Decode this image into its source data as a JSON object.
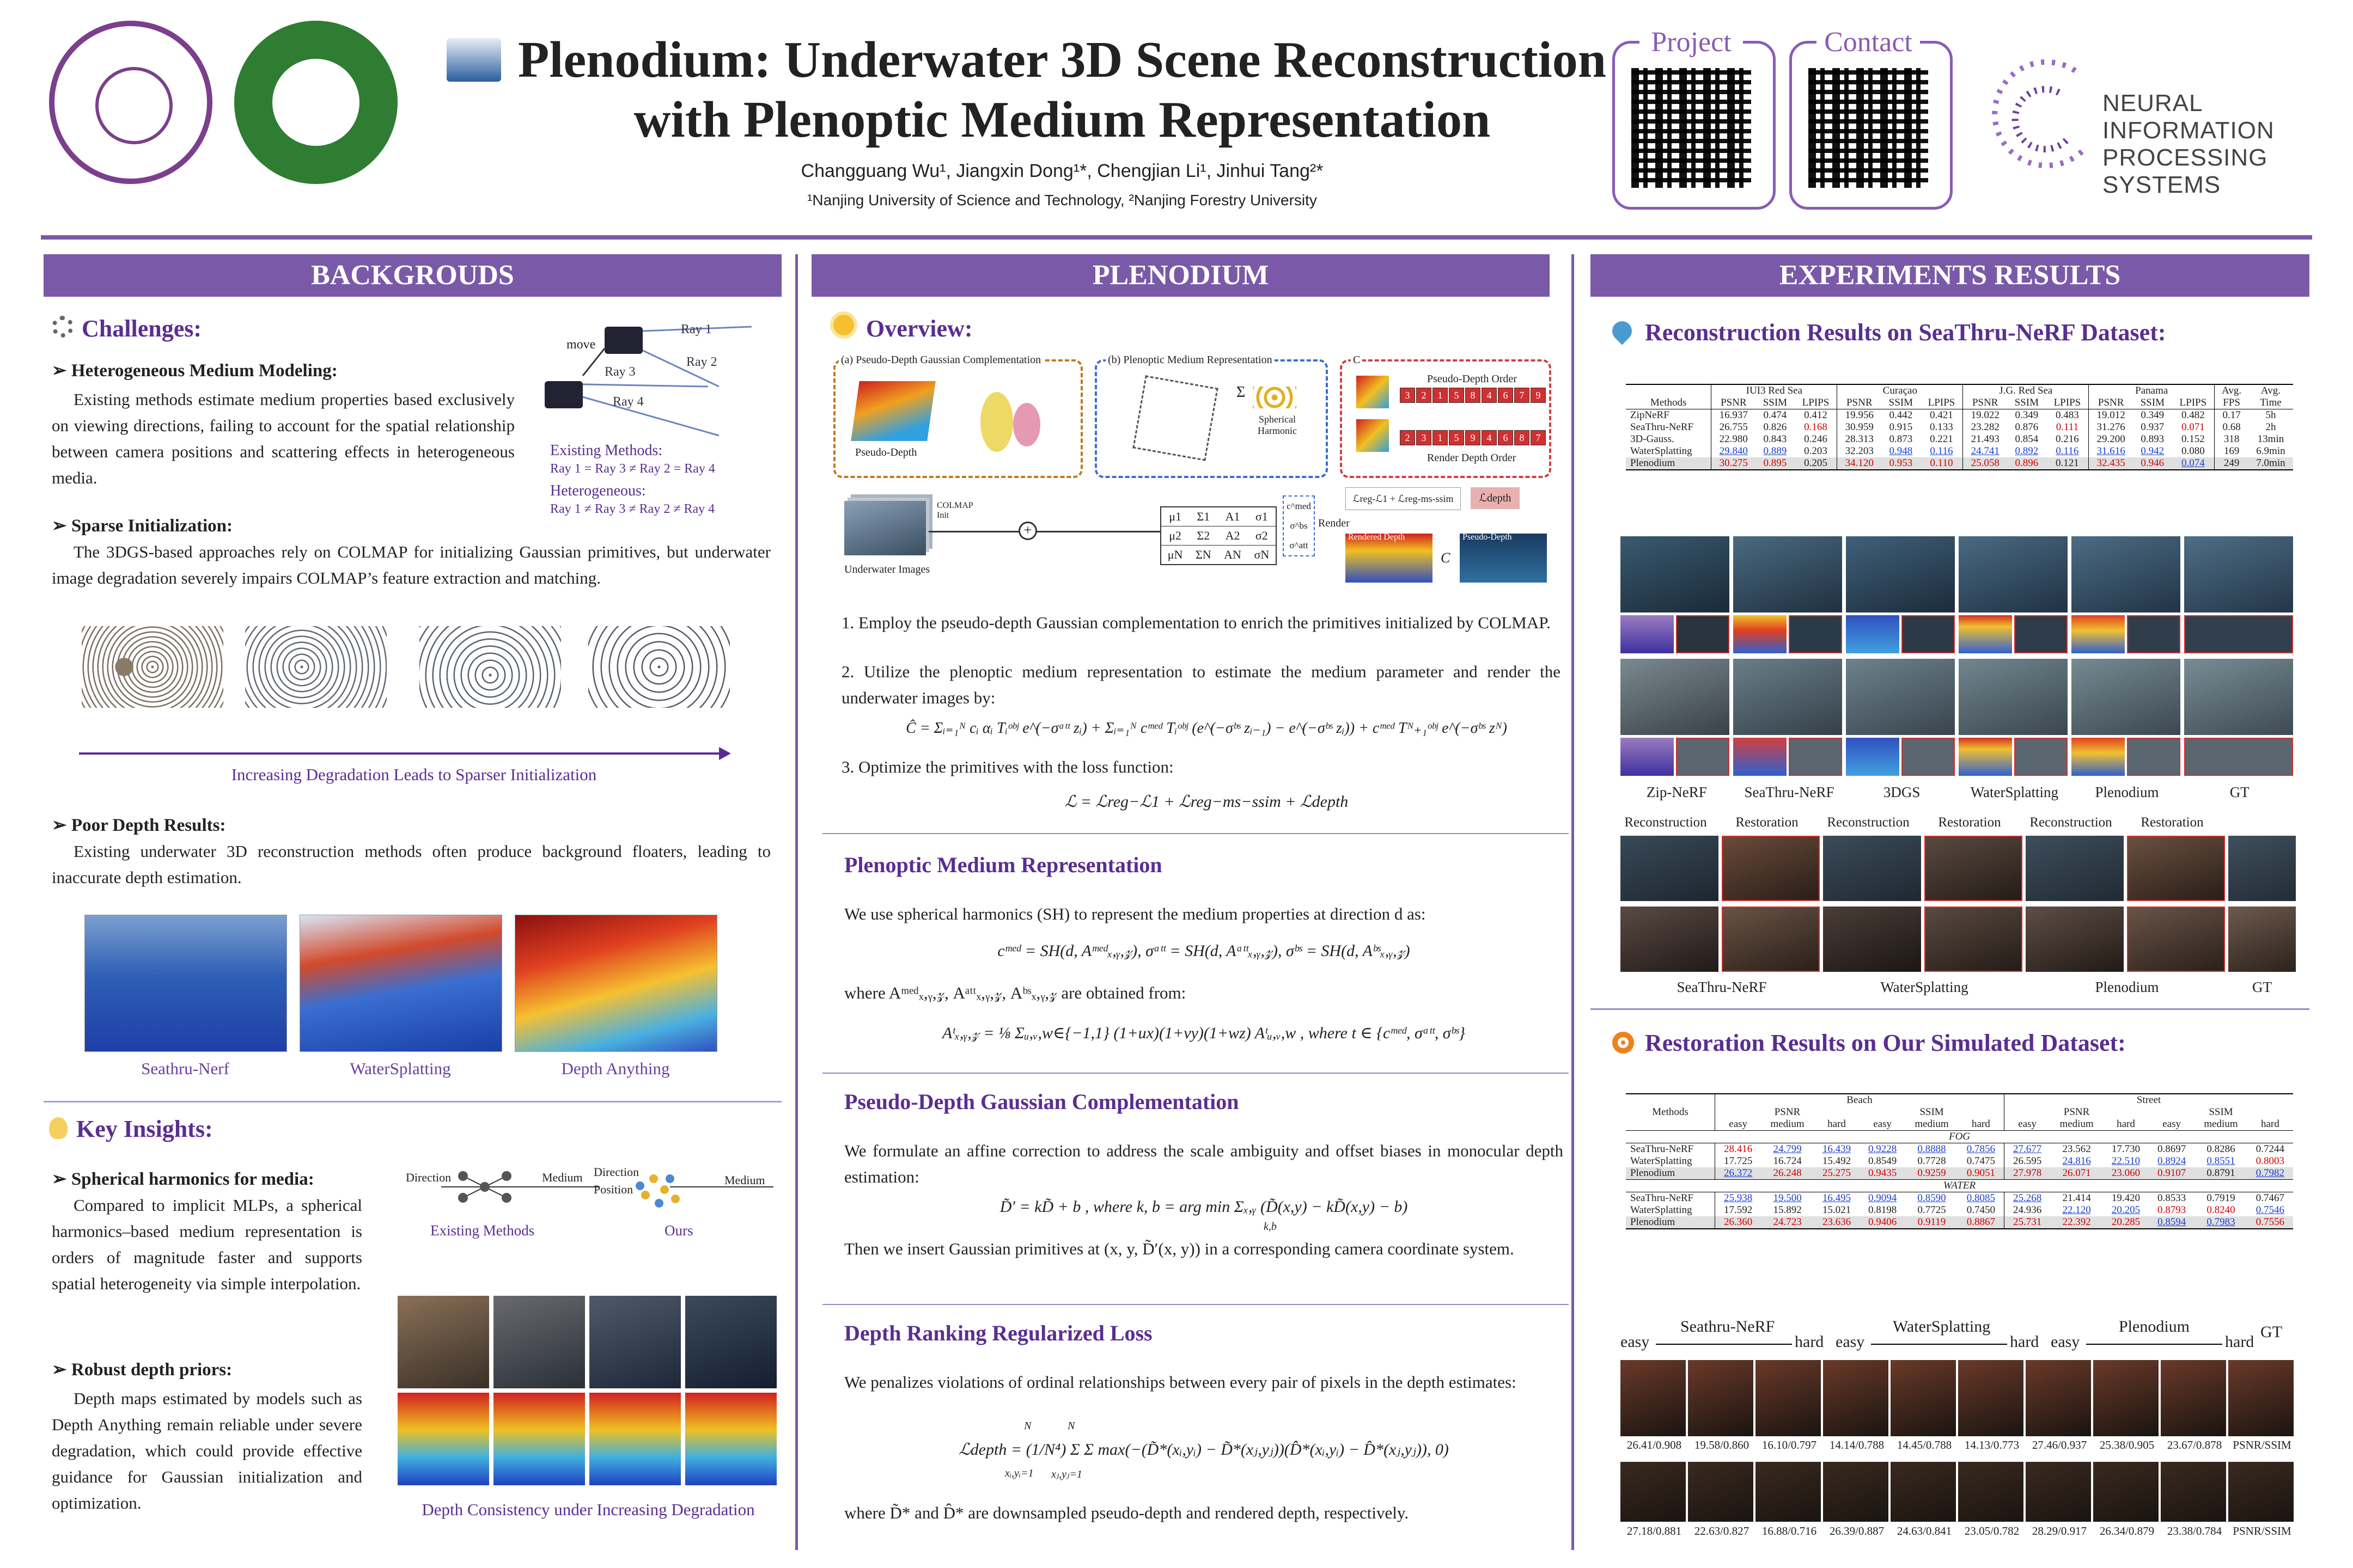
{
  "header": {
    "title_line1": "Plenodium: Underwater 3D Scene Reconstruction",
    "title_line2": "with Plenoptic Medium Representation",
    "authors": "Changguang Wu¹, Jiangxin Dong¹*, Chengjian Li¹, Jinhui Tang²*",
    "affiliations": "¹Nanjing University of Science and Technology, ²Nanjing Forestry University",
    "project_label": "Project",
    "contact_label": "Contact",
    "neurips_line1": "NEURAL INFORMATION",
    "neurips_line2": "PROCESSING SYSTEMS",
    "logo_colors": {
      "njust": "#7b3f8c",
      "njfu": "#2e7d32",
      "accent": "#7a5aa8"
    }
  },
  "columns": {
    "left": "BACKGROUDS",
    "middle": "PLENODIUM",
    "right": "EXPERIMENTS RESULTS"
  },
  "left": {
    "challenges": "Challenges:",
    "hetero_title": "Heterogeneous Medium Modeling:",
    "hetero_text": "Existing methods estimate medium properties based exclusively on viewing directions, failing to account for the spatial relationship between camera positions and scattering effects in heterogeneous media.",
    "diagram": {
      "move": "move",
      "ray1": "Ray 1",
      "ray2": "Ray 2",
      "ray3": "Ray 3",
      "ray4": "Ray 4",
      "existing": "Existing Methods:",
      "existing_eq": "Ray 1 = Ray 3 ≠ Ray 2 = Ray 4",
      "hetero": "Heterogeneous:",
      "hetero_eq": "Ray 1 ≠ Ray 3 ≠ Ray 2 ≠ Ray 4"
    },
    "sparse_title": "Sparse Initialization:",
    "sparse_text": "The 3DGS-based approaches rely on COLMAP for initializing Gaussian primitives, but underwater image degradation severely impairs COLMAP’s feature extraction and matching.",
    "sparse_caption": "Increasing Degradation Leads to Sparser Initialization",
    "poor_title": "Poor Depth Results:",
    "poor_text": "Existing underwater 3D reconstruction methods often produce background floaters, leading to inaccurate depth estimation.",
    "depth_labels": [
      "Seathru-Nerf",
      "WaterSplatting",
      "Depth Anything"
    ],
    "insights": "Key Insights:",
    "sh_title": "Spherical harmonics for media:",
    "sh_text": "Compared to implicit MLPs, a spherical harmonics–based medium representation is orders of magnitude faster and supports spatial heterogeneity via simple interpolation.",
    "sh_diag": {
      "direction": "Direction",
      "medium": "Medium",
      "direction2": "Direction",
      "position": "Position",
      "medium2": "Medium",
      "existing": "Existing Methods",
      "ours": "Ours"
    },
    "robust_title": "Robust depth priors:",
    "robust_text": "Depth maps estimated by models such as Depth Anything remain reliable under severe degradation, which could provide effective guidance for Gaussian initialization and optimization.",
    "depth_consistency": "Depth Consistency under Increasing Degradation"
  },
  "middle": {
    "overview": "Overview:",
    "diag": {
      "a": "(a) Pseudo-Depth Gaussian Complementation",
      "b": "(b) Plenoptic Medium Representation",
      "c": "C",
      "pseudo_depth": "Pseudo-Depth",
      "spherical": "Spherical Harmonic",
      "pdo": "Pseudo-Depth Order",
      "rdo": "Render Depth Order",
      "pdo_cells": [
        "3",
        "2",
        "1",
        "5",
        "8",
        "4",
        "6",
        "7",
        "9"
      ],
      "rdo_cells": [
        "2",
        "3",
        "1",
        "5",
        "9",
        "4",
        "6",
        "8",
        "7"
      ],
      "colmap": "COLMAP Init",
      "uw": "Underwater Images",
      "render": "Render",
      "loss": "ℒreg-ℒ1 + ℒreg-ms-ssim",
      "ldepth": "ℒdepth",
      "rendered_depth": "Rendered Depth",
      "pseudo_depth2": "Pseudo-Depth",
      "sigma": "Σ",
      "mu_rows": [
        [
          "μ1",
          "Σ1",
          "A1",
          "σ1"
        ],
        [
          "μ2",
          "Σ2",
          "A2",
          "σ2"
        ],
        [
          "μN",
          "ΣN",
          "AN",
          "σN"
        ]
      ],
      "vec": [
        "c^med",
        "σ^bs",
        "σ^att"
      ]
    },
    "step1": "1. Employ the pseudo-depth Gaussian complementation to enrich the primitives initialized by COLMAP.",
    "step2": "2. Utilize the plenoptic medium representation to estimate the medium parameter and render the underwater images by:",
    "eq_render": "Ĉ = Σᵢ₌₁ᴺ cᵢ αᵢ Tᵢᵒᵇʲ e^(−σᵃᵗᵗ zᵢ) + Σᵢ₌₁ᴺ cᵐᵉᵈ Tᵢᵒᵇʲ (e^(−σᵇˢ zᵢ₋₁) − e^(−σᵇˢ zᵢ)) + cᵐᵉᵈ Tᴺ₊₁ᵒᵇʲ e^(−σᵇˢ zᴺ)",
    "step3": "3. Optimize the primitives with the loss function:",
    "eq_loss": "ℒ = ℒreg−ℒ1 + ℒreg−ms−ssim + ℒdepth",
    "pmr_title": "Plenoptic Medium Representation",
    "pmr_text": "We use spherical harmonics (SH) to represent the medium properties at direction d as:",
    "pmr_eq1": "cᵐᵉᵈ = SH(d, Aᵐᵉᵈₓ,ᵧ,𝓏),  σᵃᵗᵗ = SH(d, Aᵃᵗᵗₓ,ᵧ,𝓏),  σᵇˢ = SH(d, Aᵇˢₓ,ᵧ,𝓏)",
    "pmr_where": "where Aᵐᵉᵈₓ,ᵧ,𝓏, Aᵃᵗᵗₓ,ᵧ,𝓏, Aᵇˢₓ,ᵧ,𝓏 are obtained from:",
    "pmr_eq2": "Aᵗₓ,ᵧ,𝓏 = ⅛ Σᵤ,ᵥ,w∈{−1,1} (1+ux)(1+vy)(1+wz) Aᵗᵤ,ᵥ,w , where t ∈ {cᵐᵉᵈ, σᵃᵗᵗ, σᵇˢ}",
    "pdgc_title": "Pseudo-Depth Gaussian Complementation",
    "pdgc_text": "We formulate an affine correction to address the scale ambiguity and offset biases in monocular depth estimation:",
    "pdgc_eq": "D̃′ = kD̃ + b , where k, b = arg min Σₓ,ᵧ (D̃(x,y) − kD̃(x,y) − b)",
    "pdgc_eq_sub": "k,b",
    "pdgc_text2": "Then we insert Gaussian primitives at (x, y, D̃′(x, y)) in a corresponding camera coordinate system.",
    "drrl_title": "Depth Ranking Regularized Loss",
    "drrl_text": "We penalizes violations of ordinal relationships between every pair of pixels in the depth estimates:",
    "drrl_eq": "ℒdepth = (1/N⁴) Σ Σ max(−(D̃*(xᵢ,yᵢ) − D̃*(xⱼ,yⱼ))(D̂*(xᵢ,yᵢ) − D̂*(xⱼ,yⱼ)), 0)",
    "drrl_eq_lims": [
      "N",
      "N",
      "xᵢ,yᵢ=1",
      "xⱼ,yⱼ=1"
    ],
    "drrl_where": "where D̃* and D̂* are downsampled pseudo-depth and rendered depth, respectively."
  },
  "right": {
    "recon_title": "Reconstruction Results on SeaThru-NeRF Dataset:",
    "t1": {
      "groups": [
        "IUI3 Red Sea",
        "Curaçao",
        "J.G. Red Sea",
        "Panama"
      ],
      "metric_headers": [
        "Methods",
        "PSNR",
        "SSIM",
        "LPIPS",
        "PSNR",
        "SSIM",
        "LPIPS",
        "PSNR",
        "SSIM",
        "LPIPS",
        "PSNR",
        "SSIM",
        "LPIPS",
        "FPS",
        "Time"
      ],
      "avg1": "Avg.",
      "avg2": "Avg.",
      "rows": [
        [
          "ZipNeRF",
          "16.937",
          "0.474",
          "0.412",
          "19.956",
          "0.442",
          "0.421",
          "19.022",
          "0.349",
          "0.483",
          "19.012",
          "0.349",
          "0.482",
          "0.17",
          "5h"
        ],
        [
          "SeaThru-NeRF",
          "26.755",
          "0.826",
          "0.168",
          "30.959",
          "0.915",
          "0.133",
          "23.282",
          "0.876",
          "0.111",
          "31.276",
          "0.937",
          "0.071",
          "0.68",
          "2h"
        ],
        [
          "3D-Gauss.",
          "22.980",
          "0.843",
          "0.246",
          "28.313",
          "0.873",
          "0.221",
          "21.493",
          "0.854",
          "0.216",
          "29.200",
          "0.893",
          "0.152",
          "318",
          "13min"
        ],
        [
          "WaterSplatting",
          "29.840",
          "0.889",
          "0.203",
          "32.203",
          "0.948",
          "0.116",
          "24.741",
          "0.892",
          "0.116",
          "31.616",
          "0.942",
          "0.080",
          "169",
          "6.9min"
        ],
        [
          "Plenodium",
          "30.275",
          "0.895",
          "0.205",
          "34.120",
          "0.953",
          "0.110",
          "25.058",
          "0.896",
          "0.121",
          "32.435",
          "0.946",
          "0.074",
          "249",
          "7.0min"
        ]
      ],
      "marks": {
        "red": [
          "1-3",
          "1-9",
          "1-12",
          "4-1",
          "4-2",
          "4-4",
          "4-5",
          "4-6",
          "4-7",
          "4-8",
          "4-10",
          "4-11"
        ],
        "blue": [
          "3-1",
          "3-2",
          "3-5",
          "3-6",
          "3-7",
          "3-8",
          "3-9",
          "3-10",
          "3-11",
          "4-12"
        ]
      }
    },
    "recon_labels": [
      "Zip-NeRF",
      "SeaThru-NeRF",
      "3DGS",
      "WaterSplatting",
      "Plenodium",
      "GT"
    ],
    "rr_labels": [
      "Reconstruction",
      "Restoration",
      "Reconstruction",
      "Restoration",
      "Reconstruction",
      "Restoration"
    ],
    "rr_bottom": [
      "SeaThru-NeRF",
      "WaterSplatting",
      "Plenodium",
      "GT"
    ],
    "resto_title": "Restoration Results on Our Simulated Dataset:",
    "t2": {
      "beach": "Beach",
      "street": "Street",
      "methods": "Methods",
      "psnr": "PSNR",
      "ssim": "SSIM",
      "levels": [
        "easy",
        "medium",
        "hard",
        "easy",
        "medium",
        "hard",
        "easy",
        "medium",
        "hard",
        "easy",
        "medium",
        "hard"
      ],
      "fog": "FOG",
      "water": "WATER",
      "fog_rows": [
        [
          "SeaThru-NeRF",
          "28.416",
          "24.799",
          "16.439",
          "0.9228",
          "0.8888",
          "0.7856",
          "27.677",
          "23.562",
          "17.730",
          "0.8697",
          "0.8286",
          "0.7244"
        ],
        [
          "WaterSplatting",
          "17.725",
          "16.724",
          "15.492",
          "0.8549",
          "0.7728",
          "0.7475",
          "26.595",
          "24.816",
          "22.510",
          "0.8924",
          "0.8551",
          "0.8003"
        ],
        [
          "Plenodium",
          "26.372",
          "26.248",
          "25.275",
          "0.9435",
          "0.9259",
          "0.9051",
          "27.978",
          "26.071",
          "23.060",
          "0.9107",
          "0.8791",
          "0.7982"
        ]
      ],
      "water_rows": [
        [
          "SeaThru-NeRF",
          "25.938",
          "19.500",
          "16.495",
          "0.9094",
          "0.8590",
          "0.8085",
          "25.268",
          "21.414",
          "19.420",
          "0.8533",
          "0.7919",
          "0.7467"
        ],
        [
          "WaterSplatting",
          "17.592",
          "15.892",
          "15.021",
          "0.8198",
          "0.7725",
          "0.7450",
          "24.936",
          "22.120",
          "20.205",
          "0.8793",
          "0.8240",
          "0.7546"
        ],
        [
          "Plenodium",
          "26.360",
          "24.723",
          "23.636",
          "0.9406",
          "0.9119",
          "0.8867",
          "25.731",
          "22.392",
          "20.285",
          "0.8594",
          "0.7983",
          "0.7556"
        ]
      ],
      "fog_marks": {
        "red": [
          "0-1",
          "2-2",
          "2-3",
          "2-4",
          "2-5",
          "2-6",
          "2-7",
          "2-8",
          "2-9",
          "2-10",
          "1-12"
        ],
        "blue": [
          "2-1",
          "0-2",
          "0-3",
          "0-4",
          "0-5",
          "0-6",
          "0-7",
          "1-8",
          "1-9",
          "1-10",
          "1-11",
          "2-12"
        ]
      },
      "water_marks": {
        "red": [
          "2-1",
          "2-2",
          "2-3",
          "2-4",
          "2-5",
          "2-6",
          "2-7",
          "2-8",
          "2-9",
          "1-10",
          "1-11",
          "2-12"
        ],
        "blue": [
          "0-1",
          "0-2",
          "0-3",
          "0-4",
          "0-5",
          "0-6",
          "0-7",
          "1-8",
          "1-9",
          "2-10",
          "2-11",
          "1-12"
        ]
      }
    },
    "sim_groups": [
      "Seathru-NeRF",
      "WaterSplatting",
      "Plenodium"
    ],
    "easy": "easy",
    "hard": "hard",
    "gt": "GT",
    "sim_row1": [
      "26.41/0.908",
      "19.58/0.860",
      "16.10/0.797",
      "14.14/0.788",
      "14.45/0.788",
      "14.13/0.773",
      "27.46/0.937",
      "25.38/0.905",
      "23.67/0.878",
      "PSNR/SSIM"
    ],
    "sim_row2": [
      "27.18/0.881",
      "22.63/0.827",
      "16.88/0.716",
      "26.39/0.887",
      "24.63/0.841",
      "23.05/0.782",
      "28.29/0.917",
      "26.34/0.879",
      "23.38/0.784",
      "PSNR/SSIM"
    ]
  }
}
